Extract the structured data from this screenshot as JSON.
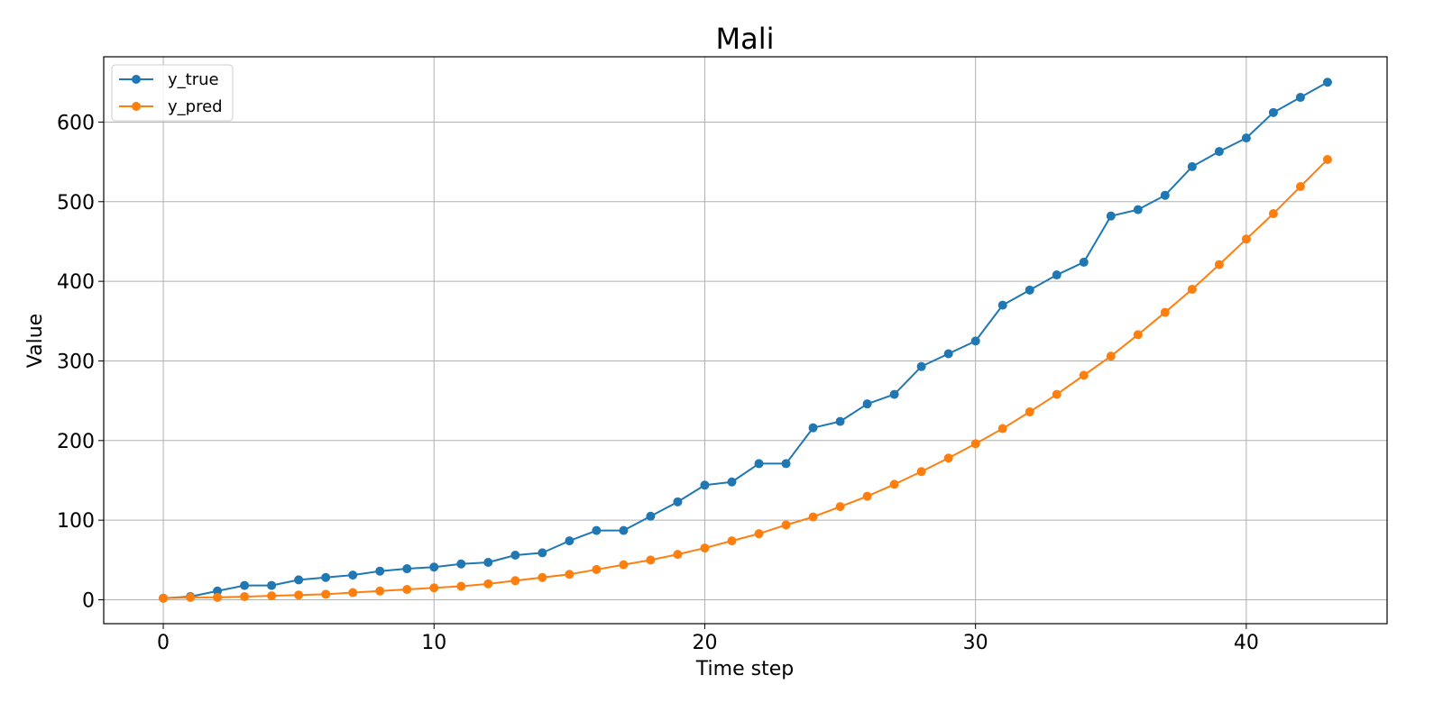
{
  "chart_data": {
    "type": "line",
    "title": "Mali",
    "xlabel": "Time step",
    "ylabel": "Value",
    "xlim": [
      -2.2,
      45.2
    ],
    "ylim": [
      -30,
      682
    ],
    "xticks": [
      0,
      10,
      20,
      30,
      40
    ],
    "yticks": [
      0,
      100,
      200,
      300,
      400,
      500,
      600
    ],
    "grid": true,
    "legend_position": "top-left",
    "x": [
      0,
      1,
      2,
      3,
      4,
      5,
      6,
      7,
      8,
      9,
      10,
      11,
      12,
      13,
      14,
      15,
      16,
      17,
      18,
      19,
      20,
      21,
      22,
      23,
      24,
      25,
      26,
      27,
      28,
      29,
      30,
      31,
      32,
      33,
      34,
      35,
      36,
      37,
      38,
      39,
      40,
      41,
      42,
      43
    ],
    "series": [
      {
        "name": "y_true",
        "color": "#1f77b4",
        "values": [
          2,
          4,
          11,
          18,
          18,
          25,
          28,
          31,
          36,
          39,
          41,
          45,
          47,
          56,
          59,
          74,
          87,
          87,
          105,
          123,
          144,
          148,
          171,
          171,
          216,
          224,
          246,
          258,
          293,
          309,
          325,
          370,
          389,
          408,
          424,
          482,
          490,
          508,
          544,
          563,
          580,
          612,
          631,
          650
        ]
      },
      {
        "name": "y_pred",
        "color": "#ff7f0e",
        "values": [
          2,
          3,
          3,
          4,
          5,
          6,
          7,
          9,
          11,
          13,
          15,
          17,
          20,
          24,
          28,
          32,
          38,
          44,
          50,
          57,
          65,
          74,
          83,
          94,
          104,
          117,
          130,
          145,
          161,
          178,
          196,
          215,
          236,
          258,
          282,
          306,
          333,
          361,
          390,
          421,
          453,
          485,
          519,
          553
        ]
      }
    ]
  }
}
